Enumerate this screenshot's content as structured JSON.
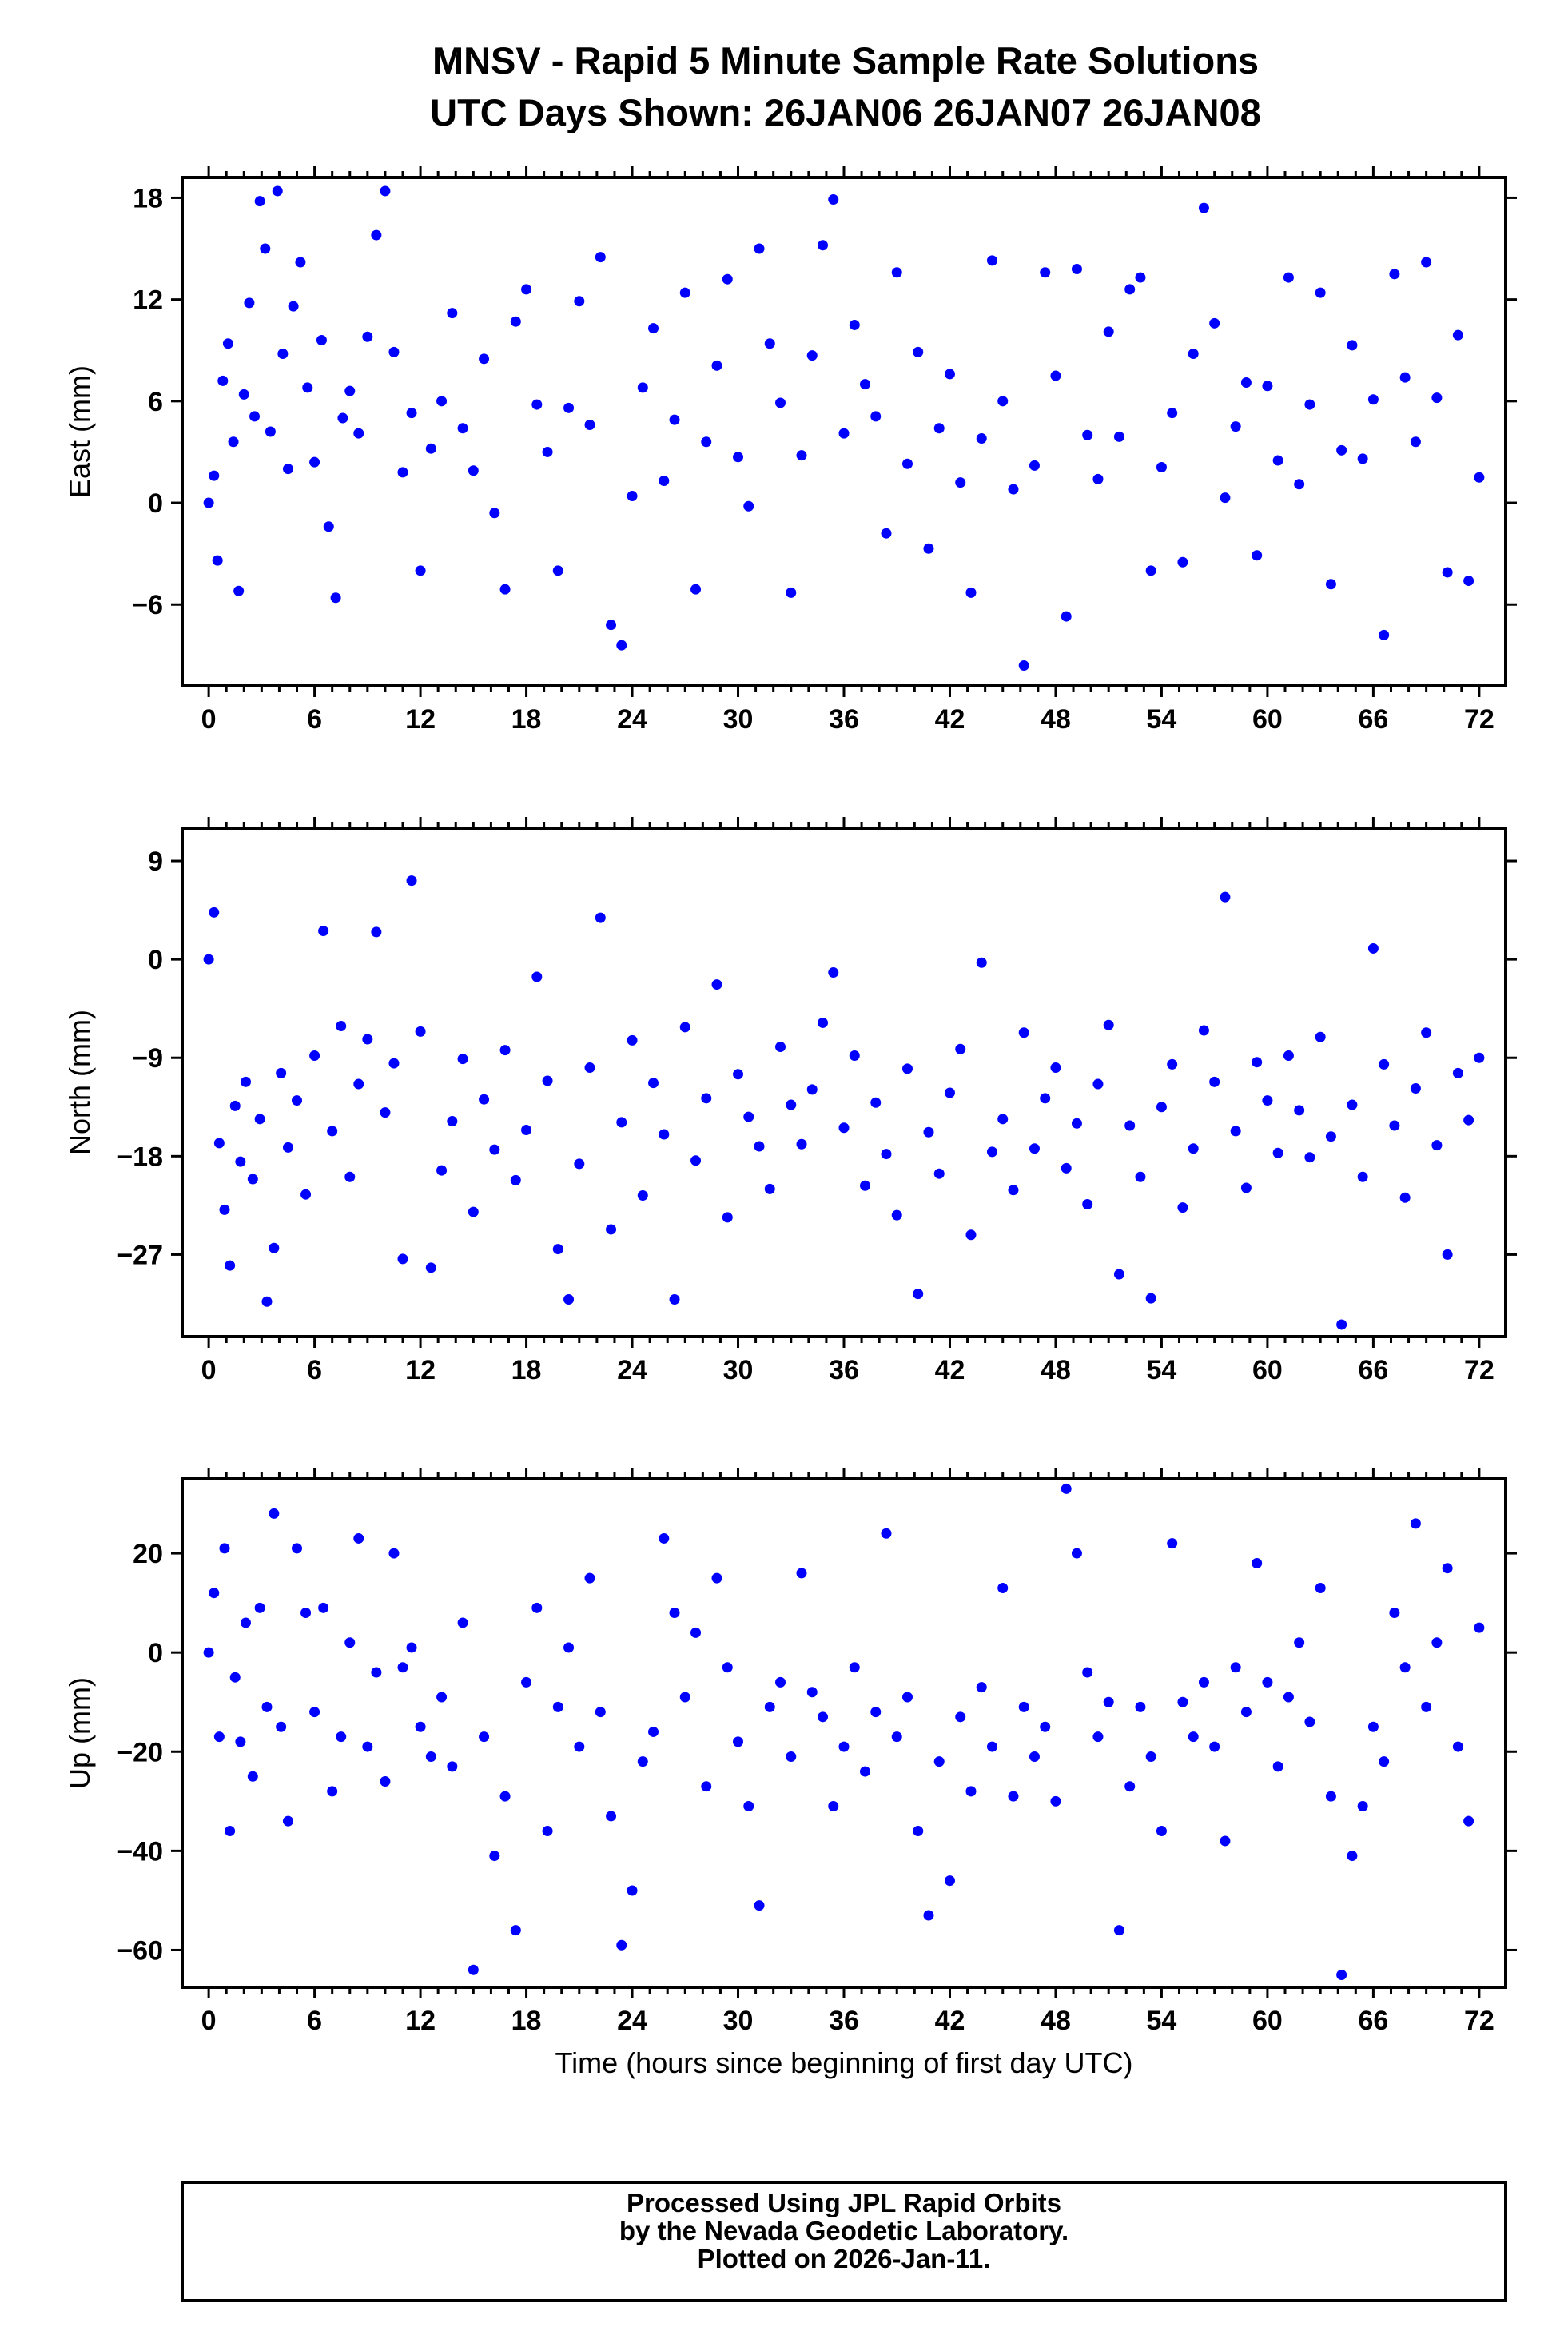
{
  "title": {
    "line1": "MNSV - Rapid 5 Minute Sample Rate Solutions",
    "line2": "UTC Days Shown:  26JAN06 26JAN07 26JAN08"
  },
  "footer": {
    "line1": "Processed Using JPL Rapid Orbits",
    "line2": "by the Nevada Geodetic Laboratory.",
    "line3": "Plotted on 2026-Jan-11."
  },
  "colors": {
    "points": "#0000ff",
    "axes": "#000000",
    "background": "#ffffff"
  },
  "chart_data": [
    {
      "type": "scatter",
      "title": "",
      "xlabel": "",
      "ylabel": "East (mm)",
      "xlim": [
        -1.5,
        73.5
      ],
      "ylim": [
        -10.8,
        19.2
      ],
      "xticks": [
        0,
        6,
        12,
        18,
        24,
        30,
        36,
        42,
        48,
        54,
        60,
        66,
        72
      ],
      "yticks": [
        -6,
        0,
        6,
        12,
        18
      ],
      "grid": false,
      "series": [
        {
          "x": [
            0.0,
            0.3,
            0.5,
            0.8,
            1.1,
            1.4,
            1.7,
            2.0,
            2.3,
            2.6,
            2.9,
            3.2,
            3.5,
            3.9,
            4.2,
            4.5,
            4.8,
            5.2,
            5.6,
            6.0,
            6.4,
            6.8,
            7.2,
            7.6,
            8.0,
            8.5,
            9.0,
            9.5,
            10.0,
            10.5,
            11.0,
            11.5,
            12.0,
            12.6,
            13.2,
            13.8,
            14.4,
            15.0,
            15.6,
            16.2,
            16.8,
            17.4,
            18.0,
            18.6,
            19.2,
            19.8,
            20.4,
            21.0,
            21.6,
            22.2,
            22.8,
            23.4,
            24.0,
            24.6,
            25.2,
            25.8,
            26.4,
            27.0,
            27.6,
            28.2,
            28.8,
            29.4,
            30.0,
            30.6,
            31.2,
            31.8,
            32.4,
            33.0,
            33.6,
            34.2,
            34.8,
            35.4,
            36.0,
            36.6,
            37.2,
            37.8,
            38.4,
            39.0,
            39.6,
            40.2,
            40.8,
            41.4,
            42.0,
            42.6,
            43.2,
            43.8,
            44.4,
            45.0,
            45.6,
            46.2,
            46.8,
            47.4,
            48.0,
            48.6,
            49.2,
            49.8,
            50.4,
            51.0,
            51.6,
            52.2,
            52.8,
            53.4,
            54.0,
            54.6,
            55.2,
            55.8,
            56.4,
            57.0,
            57.6,
            58.2,
            58.8,
            59.4,
            60.0,
            60.6,
            61.2,
            61.8,
            62.4,
            63.0,
            63.6,
            64.2,
            64.8,
            65.4,
            66.0,
            66.6,
            67.2,
            67.8,
            68.4,
            69.0,
            69.6,
            70.2,
            70.8,
            71.4,
            72.0
          ],
          "y": [
            0.0,
            1.6,
            -3.4,
            7.2,
            9.4,
            3.6,
            -5.2,
            6.4,
            11.8,
            5.1,
            17.8,
            15.0,
            4.2,
            18.4,
            8.8,
            2.0,
            11.6,
            14.2,
            6.8,
            2.4,
            9.6,
            -1.4,
            -5.6,
            5.0,
            6.6,
            4.1,
            9.8,
            15.8,
            18.4,
            8.9,
            1.8,
            5.3,
            -4.0,
            3.2,
            6.0,
            11.2,
            4.4,
            1.9,
            8.5,
            -0.6,
            -5.1,
            10.7,
            12.6,
            5.8,
            3.0,
            -4.0,
            5.6,
            11.9,
            4.6,
            14.5,
            -7.2,
            -8.4,
            0.4,
            6.8,
            10.3,
            1.3,
            4.9,
            12.4,
            -5.1,
            3.6,
            8.1,
            13.2,
            2.7,
            -0.2,
            15.0,
            9.4,
            5.9,
            -5.3,
            2.8,
            8.7,
            15.2,
            17.9,
            4.1,
            10.5,
            7.0,
            5.1,
            -1.8,
            13.6,
            2.3,
            8.9,
            -2.7,
            4.4,
            7.6,
            1.2,
            -5.3,
            3.8,
            14.3,
            6.0,
            0.8,
            -9.6,
            2.2,
            13.6,
            7.5,
            -6.7,
            13.8,
            4.0,
            1.4,
            10.1,
            3.9,
            12.6,
            13.3,
            -4.0,
            2.1,
            5.3,
            -3.5,
            8.8,
            17.4,
            10.6,
            0.3,
            4.5,
            7.1,
            -3.1,
            6.9,
            2.5,
            13.3,
            1.1,
            5.8,
            12.4,
            -4.8,
            3.1,
            9.3,
            2.6,
            6.1,
            -7.8,
            13.5,
            7.4,
            3.6,
            14.2,
            6.2,
            -4.1,
            9.9,
            -4.6,
            1.5
          ]
        }
      ]
    },
    {
      "type": "scatter",
      "title": "",
      "xlabel": "",
      "ylabel": "North (mm)",
      "xlim": [
        -1.5,
        73.5
      ],
      "ylim": [
        -34.5,
        12.0
      ],
      "xticks": [
        0,
        6,
        12,
        18,
        24,
        30,
        36,
        42,
        48,
        54,
        60,
        66,
        72
      ],
      "yticks": [
        -27,
        -18,
        -9,
        0,
        9
      ],
      "grid": false,
      "series": [
        {
          "x": [
            0.0,
            0.3,
            0.6,
            0.9,
            1.2,
            1.5,
            1.8,
            2.1,
            2.5,
            2.9,
            3.3,
            3.7,
            4.1,
            4.5,
            5.0,
            5.5,
            6.0,
            6.5,
            7.0,
            7.5,
            8.0,
            8.5,
            9.0,
            9.5,
            10.0,
            10.5,
            11.0,
            11.5,
            12.0,
            12.6,
            13.2,
            13.8,
            14.4,
            15.0,
            15.6,
            16.2,
            16.8,
            17.4,
            18.0,
            18.6,
            19.2,
            19.8,
            20.4,
            21.0,
            21.6,
            22.2,
            22.8,
            23.4,
            24.0,
            24.6,
            25.2,
            25.8,
            26.4,
            27.0,
            27.6,
            28.2,
            28.8,
            29.4,
            30.0,
            30.6,
            31.2,
            31.8,
            32.4,
            33.0,
            33.6,
            34.2,
            34.8,
            35.4,
            36.0,
            36.6,
            37.2,
            37.8,
            38.4,
            39.0,
            39.6,
            40.2,
            40.8,
            41.4,
            42.0,
            42.6,
            43.2,
            43.8,
            44.4,
            45.0,
            45.6,
            46.2,
            46.8,
            47.4,
            48.0,
            48.6,
            49.2,
            49.8,
            50.4,
            51.0,
            51.6,
            52.2,
            52.8,
            53.4,
            54.0,
            54.6,
            55.2,
            55.8,
            56.4,
            57.0,
            57.6,
            58.2,
            58.8,
            59.4,
            60.0,
            60.6,
            61.2,
            61.8,
            62.4,
            63.0,
            63.6,
            64.2,
            64.8,
            65.4,
            66.0,
            66.6,
            67.2,
            67.8,
            68.4,
            69.0,
            69.6,
            70.2,
            70.8,
            71.4,
            72.0
          ],
          "y": [
            0.0,
            4.3,
            -16.8,
            -22.9,
            -28.0,
            -13.4,
            -18.5,
            -11.2,
            -20.1,
            -14.6,
            -31.3,
            -26.4,
            -10.4,
            -17.2,
            -12.9,
            -21.5,
            -8.8,
            2.6,
            -15.7,
            -6.1,
            -19.9,
            -11.4,
            -7.3,
            2.5,
            -14.0,
            -9.5,
            -27.4,
            7.2,
            -6.6,
            -28.2,
            -19.3,
            -14.8,
            -9.1,
            -23.1,
            -12.8,
            -17.4,
            -8.3,
            -20.2,
            -15.6,
            -1.6,
            -11.1,
            -26.5,
            -31.1,
            -18.7,
            -9.9,
            3.8,
            -24.7,
            -14.9,
            -7.4,
            -21.6,
            -11.3,
            -16.0,
            -31.1,
            -6.2,
            -18.4,
            -12.7,
            -2.3,
            -23.6,
            -10.5,
            -14.4,
            -17.1,
            -21.0,
            -8.0,
            -13.3,
            -16.9,
            -11.9,
            -5.8,
            -1.2,
            -15.4,
            -8.8,
            -20.7,
            -13.1,
            -17.8,
            -23.4,
            -10.0,
            -30.6,
            -15.8,
            -19.6,
            -12.2,
            -8.2,
            -25.2,
            -0.3,
            -17.6,
            -14.6,
            -21.1,
            -6.7,
            -17.3,
            -12.7,
            -9.9,
            -19.1,
            -15.0,
            -22.4,
            -11.4,
            -6.0,
            -28.8,
            -15.2,
            -19.9,
            -31.0,
            -13.5,
            -9.6,
            -22.7,
            -17.3,
            -6.5,
            -11.2,
            5.7,
            -15.7,
            -20.9,
            -9.4,
            -12.9,
            -17.7,
            -8.8,
            -13.8,
            -18.1,
            -7.1,
            -16.2,
            -33.4,
            -13.3,
            -19.9,
            1.0,
            -9.6,
            -15.2,
            -21.8,
            -11.8,
            -6.7,
            -17.0,
            -27.0,
            -10.4,
            -14.7,
            -9.0
          ]
        }
      ]
    },
    {
      "type": "scatter",
      "title": "",
      "xlabel": "Time (hours since beginning of first day UTC)",
      "ylabel": "Up (mm)",
      "xlim": [
        -1.5,
        73.5
      ],
      "ylim": [
        -67.5,
        35.0
      ],
      "xticks": [
        0,
        6,
        12,
        18,
        24,
        30,
        36,
        42,
        48,
        54,
        60,
        66,
        72
      ],
      "yticks": [
        -60,
        -40,
        -20,
        0,
        20
      ],
      "grid": false,
      "series": [
        {
          "x": [
            0.0,
            0.3,
            0.6,
            0.9,
            1.2,
            1.5,
            1.8,
            2.1,
            2.5,
            2.9,
            3.3,
            3.7,
            4.1,
            4.5,
            5.0,
            5.5,
            6.0,
            6.5,
            7.0,
            7.5,
            8.0,
            8.5,
            9.0,
            9.5,
            10.0,
            10.5,
            11.0,
            11.5,
            12.0,
            12.6,
            13.2,
            13.8,
            14.4,
            15.0,
            15.6,
            16.2,
            16.8,
            17.4,
            18.0,
            18.6,
            19.2,
            19.8,
            20.4,
            21.0,
            21.6,
            22.2,
            22.8,
            23.4,
            24.0,
            24.6,
            25.2,
            25.8,
            26.4,
            27.0,
            27.6,
            28.2,
            28.8,
            29.4,
            30.0,
            30.6,
            31.2,
            31.8,
            32.4,
            33.0,
            33.6,
            34.2,
            34.8,
            35.4,
            36.0,
            36.6,
            37.2,
            37.8,
            38.4,
            39.0,
            39.6,
            40.2,
            40.8,
            41.4,
            42.0,
            42.6,
            43.2,
            43.8,
            44.4,
            45.0,
            45.6,
            46.2,
            46.8,
            47.4,
            48.0,
            48.6,
            49.2,
            49.8,
            50.4,
            51.0,
            51.6,
            52.2,
            52.8,
            53.4,
            54.0,
            54.6,
            55.2,
            55.8,
            56.4,
            57.0,
            57.6,
            58.2,
            58.8,
            59.4,
            60.0,
            60.6,
            61.2,
            61.8,
            62.4,
            63.0,
            63.6,
            64.2,
            64.8,
            65.4,
            66.0,
            66.6,
            67.2,
            67.8,
            68.4,
            69.0,
            69.6,
            70.2,
            70.8,
            71.4,
            72.0
          ],
          "y": [
            0.0,
            12.0,
            -17.0,
            21.0,
            -36.0,
            -5.0,
            -18.0,
            6.0,
            -25.0,
            9.0,
            -11.0,
            28.0,
            -15.0,
            -34.0,
            21.0,
            8.0,
            -12.0,
            9.0,
            -28.0,
            -17.0,
            2.0,
            23.0,
            -19.0,
            -4.0,
            -26.0,
            20.0,
            -3.0,
            1.0,
            -15.0,
            -21.0,
            -9.0,
            -23.0,
            6.0,
            -64.0,
            -17.0,
            -41.0,
            -29.0,
            -56.0,
            -6.0,
            9.0,
            -36.0,
            -11.0,
            1.0,
            -19.0,
            15.0,
            -12.0,
            -33.0,
            -59.0,
            -48.0,
            -22.0,
            -16.0,
            23.0,
            8.0,
            -9.0,
            4.0,
            -27.0,
            15.0,
            -3.0,
            -18.0,
            -31.0,
            -51.0,
            -11.0,
            -6.0,
            -21.0,
            16.0,
            -8.0,
            -13.0,
            -31.0,
            -19.0,
            -3.0,
            -24.0,
            -12.0,
            24.0,
            -17.0,
            -9.0,
            -36.0,
            -53.0,
            -22.0,
            -46.0,
            -13.0,
            -28.0,
            -7.0,
            -19.0,
            13.0,
            -29.0,
            -11.0,
            -21.0,
            -15.0,
            -30.0,
            33.0,
            20.0,
            -4.0,
            -17.0,
            -10.0,
            -56.0,
            -27.0,
            -11.0,
            -21.0,
            -36.0,
            22.0,
            -10.0,
            -17.0,
            -6.0,
            -19.0,
            -38.0,
            -3.0,
            -12.0,
            18.0,
            -6.0,
            -23.0,
            -9.0,
            2.0,
            -14.0,
            13.0,
            -29.0,
            -65.0,
            -41.0,
            -31.0,
            -15.0,
            -22.0,
            8.0,
            -3.0,
            26.0,
            -11.0,
            2.0,
            17.0,
            -19.0,
            -34.0,
            5.0
          ]
        }
      ]
    }
  ]
}
